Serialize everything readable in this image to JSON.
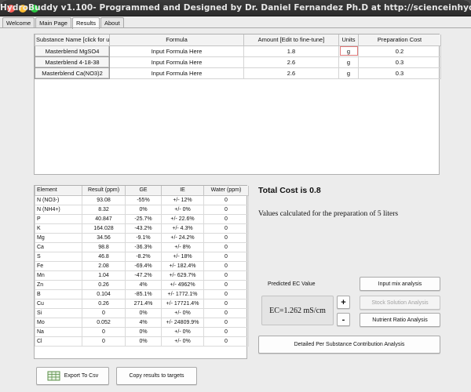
{
  "window": {
    "title": "HydroBuddy v1.100- Programmed and Designed by Dr. Daniel Fernandez Ph.D at http://scienceinhydroponics.com"
  },
  "tabs": [
    {
      "label": "Welcome"
    },
    {
      "label": "Main Page"
    },
    {
      "label": "Results",
      "active": true
    },
    {
      "label": "About"
    }
  ],
  "substances": {
    "headers": [
      "Substance Name [click for url]",
      "Formula",
      "Amount [Edit to fine-tune]",
      "Units",
      "Preparation Cost"
    ],
    "rows": [
      {
        "name": "Masterblend MgSO4",
        "formula": "Input Formula Here",
        "amount": "1.8",
        "units": "g",
        "cost": "0.2"
      },
      {
        "name": "Masterblend 4-18-38",
        "formula": "Input Formula Here",
        "amount": "2.6",
        "units": "g",
        "cost": "0.3"
      },
      {
        "name": "Masterblend Ca(NO3)2",
        "formula": "Input Formula Here",
        "amount": "2.6",
        "units": "g",
        "cost": "0.3"
      }
    ]
  },
  "results": {
    "headers": [
      "Element",
      "Result (ppm)",
      "GE",
      "IE",
      "Water (ppm)"
    ],
    "rows": [
      [
        "N (NO3-)",
        "93.08",
        "-55%",
        "+/- 12%",
        "0"
      ],
      [
        "N (NH4+)",
        "8.32",
        "0%",
        "+/- 0%",
        "0"
      ],
      [
        "P",
        "40.847",
        "-25.7%",
        "+/- 22.6%",
        "0"
      ],
      [
        "K",
        "164.028",
        "-43.2%",
        "+/- 4.3%",
        "0"
      ],
      [
        "Mg",
        "34.56",
        "-9.1%",
        "+/- 24.2%",
        "0"
      ],
      [
        "Ca",
        "98.8",
        "-36.3%",
        "+/- 8%",
        "0"
      ],
      [
        "S",
        "46.8",
        "-8.2%",
        "+/- 18%",
        "0"
      ],
      [
        "Fe",
        "2.08",
        "-69.4%",
        "+/- 182.4%",
        "0"
      ],
      [
        "Mn",
        "1.04",
        "-47.2%",
        "+/- 629.7%",
        "0"
      ],
      [
        "Zn",
        "0.26",
        "4%",
        "+/- 4962%",
        "0"
      ],
      [
        "B",
        "0.104",
        "-85.1%",
        "+/- 1772.1%",
        "0"
      ],
      [
        "Cu",
        "0.26",
        "271.4%",
        "+/- 17721.4%",
        "0"
      ],
      [
        "Si",
        "0",
        "0%",
        "+/- 0%",
        "0"
      ],
      [
        "Mo",
        "0.052",
        "4%",
        "+/- 24809.9%",
        "0"
      ],
      [
        "Na",
        "0",
        "0%",
        "+/- 0%",
        "0"
      ],
      [
        "Cl",
        "0",
        "0%",
        "+/- 0%",
        "0"
      ]
    ]
  },
  "summary": {
    "total_cost": "Total Cost is 0.8",
    "prep_note": "Values calculated for the preparation of 5 liters"
  },
  "ec": {
    "label": "Predicted EC Value",
    "value": "EC=1.262 mS/cm",
    "plus": "+",
    "minus": "-"
  },
  "actions": {
    "input_mix": "Input mix analysis",
    "stock_solution": "Stock Solution Analysis",
    "nutrient_ratio": "Nutrient Ratio Analysis",
    "detailed": "Detailed Per Substance Contribution Analysis",
    "export_csv": "Export To Csv",
    "copy_targets": "Copy results to targets"
  },
  "icons": {
    "export": "spreadsheet-icon"
  }
}
